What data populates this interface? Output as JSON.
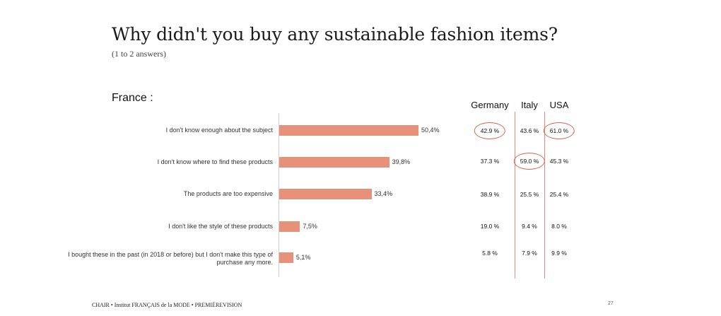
{
  "title": "Why didn't you buy any sustainable fashion items?",
  "subtitle": "(1 to 2 answers)",
  "footer": "CHAIR • Institut FRANÇAIS de la MODE • PREMIÈREVISION",
  "page_number": "27",
  "colors": {
    "bar": "#e8917a",
    "highlight": "#d9664c"
  },
  "chart_data": {
    "type": "bar",
    "orientation": "horizontal",
    "title": "France :",
    "categories": [
      "I don't know enough about the subject",
      "I don't know where to find these products",
      "The products are too expensive",
      "I don't like the style of these products",
      "I bought these in the past (in 2018 or before) but I don't make this type of purchase any more."
    ],
    "values": [
      50.4,
      39.8,
      33.4,
      7.5,
      5.1
    ],
    "value_labels": [
      "50,4%",
      "39,8%",
      "33,4%",
      "7,5%",
      "5,1%"
    ],
    "xlim": [
      0,
      100
    ],
    "grid": false,
    "comparison_table": {
      "columns": [
        "Germany",
        "Italy",
        "USA"
      ],
      "rows": [
        [
          "42.9 %",
          "43.6 %",
          "61.0 %"
        ],
        [
          "37.3 %",
          "59.0 %",
          "45.3 %"
        ],
        [
          "38.9 %",
          "25.5 %",
          "25.4 %"
        ],
        [
          "19.0 %",
          "9.4 %",
          "8.0 %"
        ],
        [
          "5.8 %",
          "7.9 %",
          "9.9 %"
        ]
      ],
      "highlighted": [
        [
          0,
          0
        ],
        [
          0,
          2
        ],
        [
          1,
          1
        ]
      ]
    }
  }
}
